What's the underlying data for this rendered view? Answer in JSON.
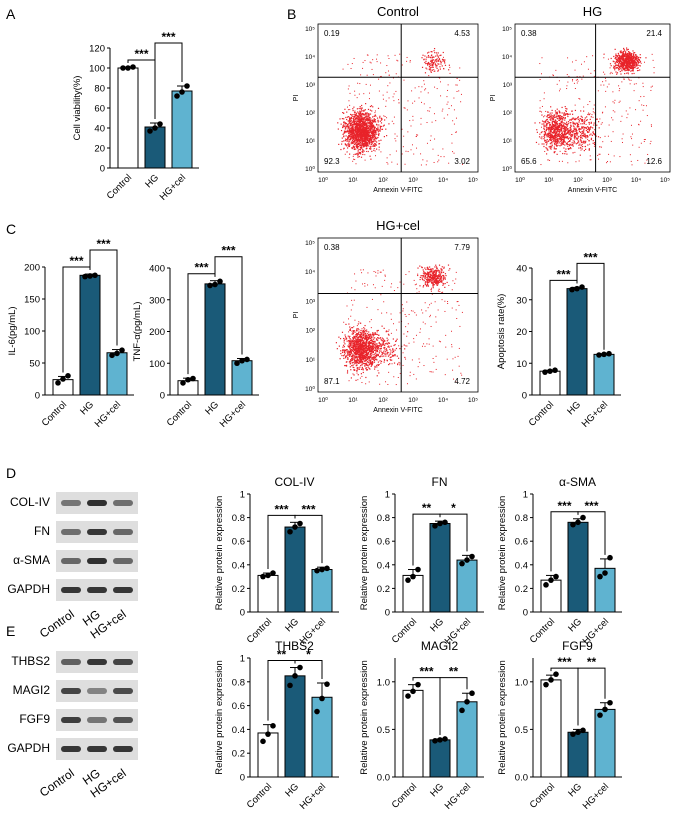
{
  "colors": {
    "control": "#ffffff",
    "hg": "#1a5a78",
    "hgcel": "#5fb3d0",
    "dot": "#000000",
    "flow": "#e8232a"
  },
  "panel_labels": [
    "A",
    "B",
    "C",
    "D",
    "E"
  ],
  "chart_data": [
    {
      "id": "A",
      "type": "bar",
      "title": "",
      "ylabel": "Cell viability(%)",
      "categories": [
        "Control",
        "HG",
        "HG+cel"
      ],
      "values": [
        100,
        41,
        77
      ],
      "errors": [
        1,
        4,
        5
      ],
      "points": [
        [
          100,
          100,
          101
        ],
        [
          37,
          40,
          44
        ],
        [
          72,
          76,
          82
        ]
      ],
      "ylim": [
        0,
        120
      ],
      "yticks": [
        0,
        20,
        40,
        60,
        80,
        100,
        120
      ],
      "sig": [
        {
          "a": 0,
          "b": 1,
          "label": "***",
          "level": 0
        },
        {
          "a": 1,
          "b": 2,
          "label": "***",
          "level": 1
        }
      ]
    },
    {
      "id": "IL6",
      "type": "bar",
      "title": "",
      "ylabel": "IL-6(pg/mL)",
      "categories": [
        "Control",
        "HG",
        "HG+cel"
      ],
      "values": [
        24,
        187,
        66
      ],
      "errors": [
        5,
        2,
        5
      ],
      "points": [
        [
          19,
          25,
          30
        ],
        [
          185,
          186,
          187
        ],
        [
          62,
          65,
          70
        ]
      ],
      "ylim": [
        0,
        200
      ],
      "yticks": [
        0,
        50,
        100,
        150,
        200
      ],
      "sig": [
        {
          "a": 0,
          "b": 1,
          "label": "***",
          "level": 0
        },
        {
          "a": 1,
          "b": 2,
          "label": "***",
          "level": 1
        }
      ]
    },
    {
      "id": "TNF",
      "type": "bar",
      "title": "",
      "ylabel": "TNF-α(pg/mL)",
      "categories": [
        "Control",
        "HG",
        "HG+cel"
      ],
      "values": [
        45,
        350,
        108
      ],
      "errors": [
        8,
        10,
        7
      ],
      "points": [
        [
          38,
          48,
          52
        ],
        [
          345,
          348,
          358
        ],
        [
          100,
          108,
          112
        ]
      ],
      "ylim": [
        0,
        400
      ],
      "yticks": [
        0,
        100,
        200,
        300,
        400
      ],
      "sig": [
        {
          "a": 0,
          "b": 1,
          "label": "***",
          "level": 0
        },
        {
          "a": 1,
          "b": 2,
          "label": "***",
          "level": 1
        }
      ]
    },
    {
      "id": "APOP",
      "type": "bar",
      "title": "",
      "ylabel": "Apoptosis rate(%)",
      "categories": [
        "Control",
        "HG",
        "HG+cel"
      ],
      "values": [
        7.5,
        33.5,
        12.8
      ],
      "errors": [
        0.3,
        0.4,
        0.2
      ],
      "points": [
        [
          7.2,
          7.5,
          7.8
        ],
        [
          33.2,
          33.5,
          34
        ],
        [
          12.6,
          12.8,
          13
        ]
      ],
      "ylim": [
        0,
        40
      ],
      "yticks": [
        0,
        10,
        20,
        30,
        40
      ],
      "sig": [
        {
          "a": 0,
          "b": 1,
          "label": "***",
          "level": 0
        },
        {
          "a": 1,
          "b": 2,
          "label": "***",
          "level": 1
        }
      ]
    },
    {
      "id": "COL",
      "type": "bar",
      "title": "COL-IV",
      "ylabel": "Relative protein expression",
      "categories": [
        "Control",
        "HG",
        "HG+cel"
      ],
      "values": [
        0.31,
        0.72,
        0.36
      ],
      "errors": [
        0.02,
        0.04,
        0.02
      ],
      "points": [
        [
          0.3,
          0.31,
          0.33
        ],
        [
          0.68,
          0.72,
          0.75
        ],
        [
          0.35,
          0.36,
          0.37
        ]
      ],
      "ylim": [
        0,
        1.0
      ],
      "yticks": [
        0.0,
        0.2,
        0.4,
        0.6,
        0.8,
        1.0
      ],
      "sig": [
        {
          "a": 0,
          "b": 1,
          "label": "***",
          "level": 0
        },
        {
          "a": 1,
          "b": 2,
          "label": "***",
          "level": 0
        }
      ]
    },
    {
      "id": "FN",
      "type": "bar",
      "title": "FN",
      "ylabel": "Relative protein expression",
      "categories": [
        "Control",
        "HG",
        "HG+cel"
      ],
      "values": [
        0.31,
        0.75,
        0.44
      ],
      "errors": [
        0.05,
        0.02,
        0.04
      ],
      "points": [
        [
          0.27,
          0.3,
          0.36
        ],
        [
          0.73,
          0.75,
          0.76
        ],
        [
          0.41,
          0.44,
          0.47
        ]
      ],
      "ylim": [
        0,
        1.0
      ],
      "yticks": [
        0.0,
        0.2,
        0.4,
        0.6,
        0.8,
        1.0
      ],
      "sig": [
        {
          "a": 0,
          "b": 1,
          "label": "**",
          "level": 0
        },
        {
          "a": 1,
          "b": 2,
          "label": "*",
          "level": 0
        }
      ]
    },
    {
      "id": "SMA",
      "type": "bar",
      "title": "α-SMA",
      "ylabel": "Relative protein expression",
      "categories": [
        "Control",
        "HG",
        "HG+cel"
      ],
      "values": [
        0.27,
        0.76,
        0.37
      ],
      "errors": [
        0.04,
        0.03,
        0.08
      ],
      "points": [
        [
          0.23,
          0.27,
          0.3
        ],
        [
          0.74,
          0.76,
          0.8
        ],
        [
          0.3,
          0.33,
          0.46
        ]
      ],
      "ylim": [
        0,
        1.0
      ],
      "yticks": [
        0.0,
        0.2,
        0.4,
        0.6,
        0.8,
        1.0
      ],
      "sig": [
        {
          "a": 0,
          "b": 1,
          "label": "***",
          "level": 0
        },
        {
          "a": 1,
          "b": 2,
          "label": "***",
          "level": 0
        }
      ]
    },
    {
      "id": "THBS2",
      "type": "bar",
      "title": "THBS2",
      "ylabel": "Relative protein expression",
      "categories": [
        "Control",
        "HG",
        "HG+cel"
      ],
      "values": [
        0.37,
        0.85,
        0.67
      ],
      "errors": [
        0.07,
        0.07,
        0.12
      ],
      "points": [
        [
          0.3,
          0.36,
          0.43
        ],
        [
          0.77,
          0.85,
          0.92
        ],
        [
          0.55,
          0.66,
          0.78
        ]
      ],
      "ylim": [
        0,
        1.0
      ],
      "yticks": [
        0.0,
        0.2,
        0.4,
        0.6,
        0.8,
        1.0
      ],
      "sig": [
        {
          "a": 0,
          "b": 1,
          "label": "**",
          "level": 0
        },
        {
          "a": 1,
          "b": 2,
          "label": "*",
          "level": 0
        }
      ]
    },
    {
      "id": "MAGI2",
      "type": "bar",
      "title": "MAGI2",
      "ylabel": "Relative protein expression",
      "categories": [
        "Control",
        "HG",
        "HG+cel"
      ],
      "values": [
        0.91,
        0.39,
        0.79
      ],
      "errors": [
        0.06,
        0.01,
        0.09
      ],
      "points": [
        [
          0.85,
          0.9,
          0.97
        ],
        [
          0.38,
          0.39,
          0.4
        ],
        [
          0.7,
          0.79,
          0.88
        ]
      ],
      "ylim": [
        0,
        1.25
      ],
      "yticks": [
        0.0,
        0.5,
        1.0
      ],
      "ytick_labels": [
        "0.0",
        "0.5",
        "1.0"
      ],
      "sig": [
        {
          "a": 0,
          "b": 1,
          "label": "***",
          "level": 0
        },
        {
          "a": 1,
          "b": 2,
          "label": "**",
          "level": 0
        }
      ]
    },
    {
      "id": "FGF9",
      "type": "bar",
      "title": "FGF9",
      "ylabel": "Relative protein expression",
      "categories": [
        "Control",
        "HG",
        "HG+cel"
      ],
      "values": [
        1.02,
        0.47,
        0.71
      ],
      "errors": [
        0.05,
        0.03,
        0.07
      ],
      "points": [
        [
          0.97,
          1.02,
          1.08
        ],
        [
          0.45,
          0.47,
          0.49
        ],
        [
          0.65,
          0.71,
          0.78
        ]
      ],
      "ylim": [
        0,
        1.25
      ],
      "yticks": [
        0.0,
        0.5,
        1.0
      ],
      "ytick_labels": [
        "0.0",
        "0.5",
        "1.0"
      ],
      "sig": [
        {
          "a": 0,
          "b": 1,
          "label": "***",
          "level": 0
        },
        {
          "a": 1,
          "b": 2,
          "label": "**",
          "level": 0
        }
      ]
    }
  ],
  "flow_plots": [
    {
      "title": "Control",
      "q": [
        "0.19",
        "4.53",
        "92.3",
        "3.02"
      ],
      "xlabel": "Annexin V-FITC",
      "ylabel": "PI",
      "shift": 0
    },
    {
      "title": "HG",
      "q": [
        "0.38",
        "21.4",
        "65.6",
        "12.6"
      ],
      "xlabel": "Annexin V-FITC",
      "ylabel": "PI",
      "shift": 1
    },
    {
      "title": "HG+cel",
      "q": [
        "0.38",
        "7.79",
        "87.1",
        "4.72"
      ],
      "xlabel": "Annexin V-FITC",
      "ylabel": "PI",
      "shift": 0.4
    }
  ],
  "flow_ticks": [
    "10⁰",
    "10¹",
    "10²",
    "10³",
    "10⁴",
    "10⁵"
  ],
  "blots": [
    {
      "rows": [
        "COL-IV",
        "FN",
        "α-SMA",
        "GAPDH"
      ],
      "intensity": [
        [
          0.45,
          0.95,
          0.5
        ],
        [
          0.5,
          0.9,
          0.55
        ],
        [
          0.55,
          0.95,
          0.55
        ],
        [
          0.9,
          0.9,
          0.9
        ]
      ],
      "lanes": [
        "Control",
        "HG",
        "HG+cel"
      ]
    },
    {
      "rows": [
        "THBS2",
        "MAGI2",
        "FGF9",
        "GAPDH"
      ],
      "intensity": [
        [
          0.6,
          0.9,
          0.8
        ],
        [
          0.8,
          0.35,
          0.75
        ],
        [
          0.85,
          0.45,
          0.7
        ],
        [
          0.9,
          0.9,
          0.9
        ]
      ],
      "lanes": [
        "Control",
        "HG",
        "HG+cel"
      ]
    }
  ]
}
